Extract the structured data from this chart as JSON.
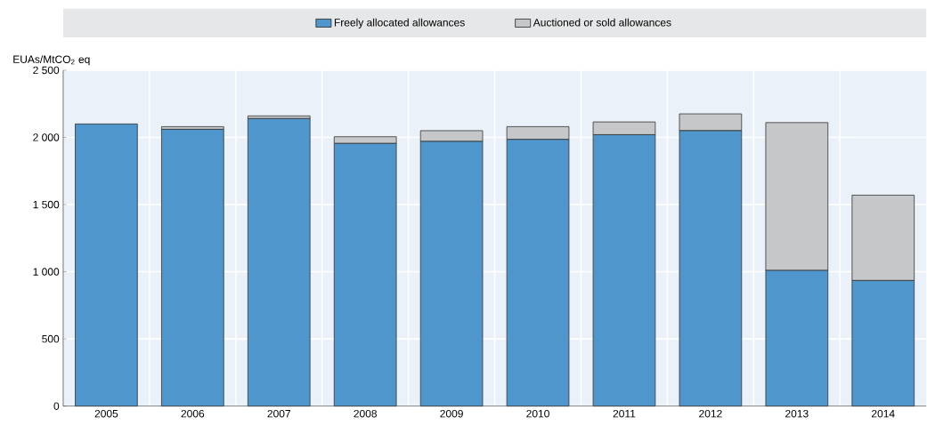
{
  "chart_data": {
    "type": "bar",
    "stacked": true,
    "categories": [
      "2005",
      "2006",
      "2007",
      "2008",
      "2009",
      "2010",
      "2011",
      "2012",
      "2013",
      "2014"
    ],
    "series": [
      {
        "name": "Freely allocated allowances",
        "color": "#4e96cc",
        "values": [
          2100,
          2060,
          2140,
          1955,
          1970,
          1985,
          2020,
          2050,
          1010,
          935
        ]
      },
      {
        "name": "Auctioned or sold allowances",
        "color": "#c6c7c8",
        "values": [
          0,
          20,
          20,
          50,
          80,
          95,
          95,
          125,
          1100,
          635
        ]
      }
    ],
    "ylabel": "EUAs/MtCO$_{2}$ eq",
    "ylim": [
      0,
      2500
    ],
    "yticks": [
      0,
      500,
      {
        "value": 1000,
        "label": "1 000"
      },
      {
        "value": 1500,
        "label": "1 500"
      },
      {
        "value": 2000,
        "label": "2 000"
      },
      {
        "value": 2500,
        "label": "2 500"
      }
    ],
    "grid": true,
    "legend": "top"
  }
}
